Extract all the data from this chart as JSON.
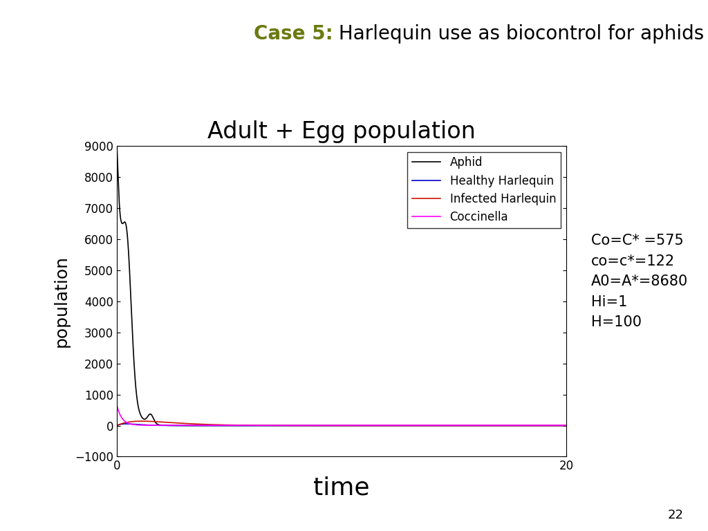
{
  "title_case": "Case 5:",
  "title_case_color": "#6b7a10",
  "title_rest": " Harlequin use as biocontrol for aphids",
  "title_fontsize": 20,
  "subtitle": "Adult + Egg population",
  "subtitle_fontsize": 24,
  "xlabel": "time",
  "ylabel": "population",
  "xlabel_fontsize": 26,
  "ylabel_fontsize": 18,
  "xlim": [
    0,
    20
  ],
  "ylim": [
    -1000,
    9000
  ],
  "yticks": [
    -1000,
    0,
    1000,
    2000,
    3000,
    4000,
    5000,
    6000,
    7000,
    8000,
    9000
  ],
  "xticks": [
    0,
    20
  ],
  "legend_labels": [
    "Aphid",
    "Healthy Harlequin",
    "Infected Harlequin",
    "Coccinella"
  ],
  "legend_colors": [
    "#000000",
    "#0000cc",
    "#cc1100",
    "#ff00ff"
  ],
  "annotation": "Co=C* =575\nco=c*=122\nA0=A*=8680\nHi=1\nH=100",
  "annotation_fontsize": 15,
  "page_number": "22",
  "background_color": "#ffffff"
}
